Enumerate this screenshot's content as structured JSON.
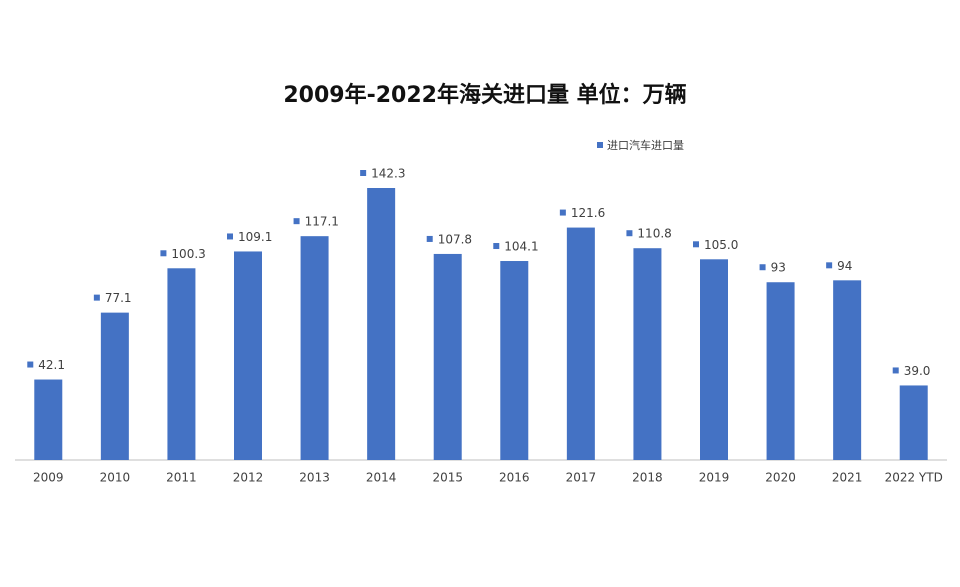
{
  "chart_data": {
    "type": "bar",
    "title": "2009年-2022年海关进口量  单位：万辆",
    "categories": [
      "2009",
      "2010",
      "2011",
      "2012",
      "2013",
      "2014",
      "2015",
      "2016",
      "2017",
      "2018",
      "2019",
      "2020",
      "2021",
      "2022 YTD"
    ],
    "series": [
      {
        "name": "进口汽车进口量",
        "color": "#4472c4",
        "values": [
          42.1,
          77.1,
          100.3,
          109.1,
          117.1,
          142.3,
          107.8,
          104.1,
          121.6,
          110.8,
          105.0,
          93,
          94,
          39.0
        ],
        "value_labels": [
          "42.1",
          "77.1",
          "100.3",
          "109.1",
          "117.1",
          "142.3",
          "107.8",
          "104.1",
          "121.6",
          "110.8",
          "105.0",
          "93",
          "94",
          "39.0"
        ]
      }
    ],
    "legend": "top-right"
  }
}
